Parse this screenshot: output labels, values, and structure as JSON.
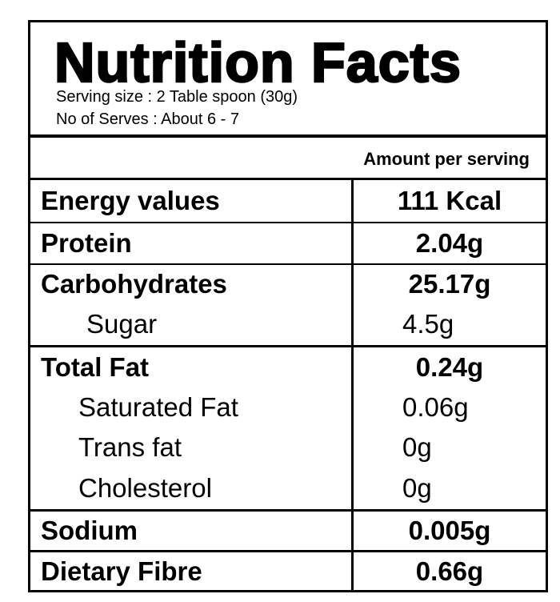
{
  "header": {
    "title": "Nutrition Facts",
    "serving_size": "Serving size : 2 Table spoon (30g)",
    "serves": "No of Serves : About 6 - 7",
    "amount_per_serving": "Amount per serving"
  },
  "table": {
    "rows": [
      [
        "Energy values",
        "111 Kcal"
      ],
      [
        "Protein",
        "2.04g"
      ],
      [
        "Carbohydrates",
        "25.17g"
      ],
      [
        "Sugar",
        "4.5g"
      ],
      [
        "Total Fat",
        "0.24g"
      ],
      [
        "Saturated Fat",
        "0.06g"
      ],
      [
        "Trans fat",
        "0g"
      ],
      [
        "Cholesterol",
        "0g"
      ],
      [
        "Sodium",
        "0.005g"
      ],
      [
        "Dietary Fibre",
        "0.66g"
      ]
    ]
  }
}
